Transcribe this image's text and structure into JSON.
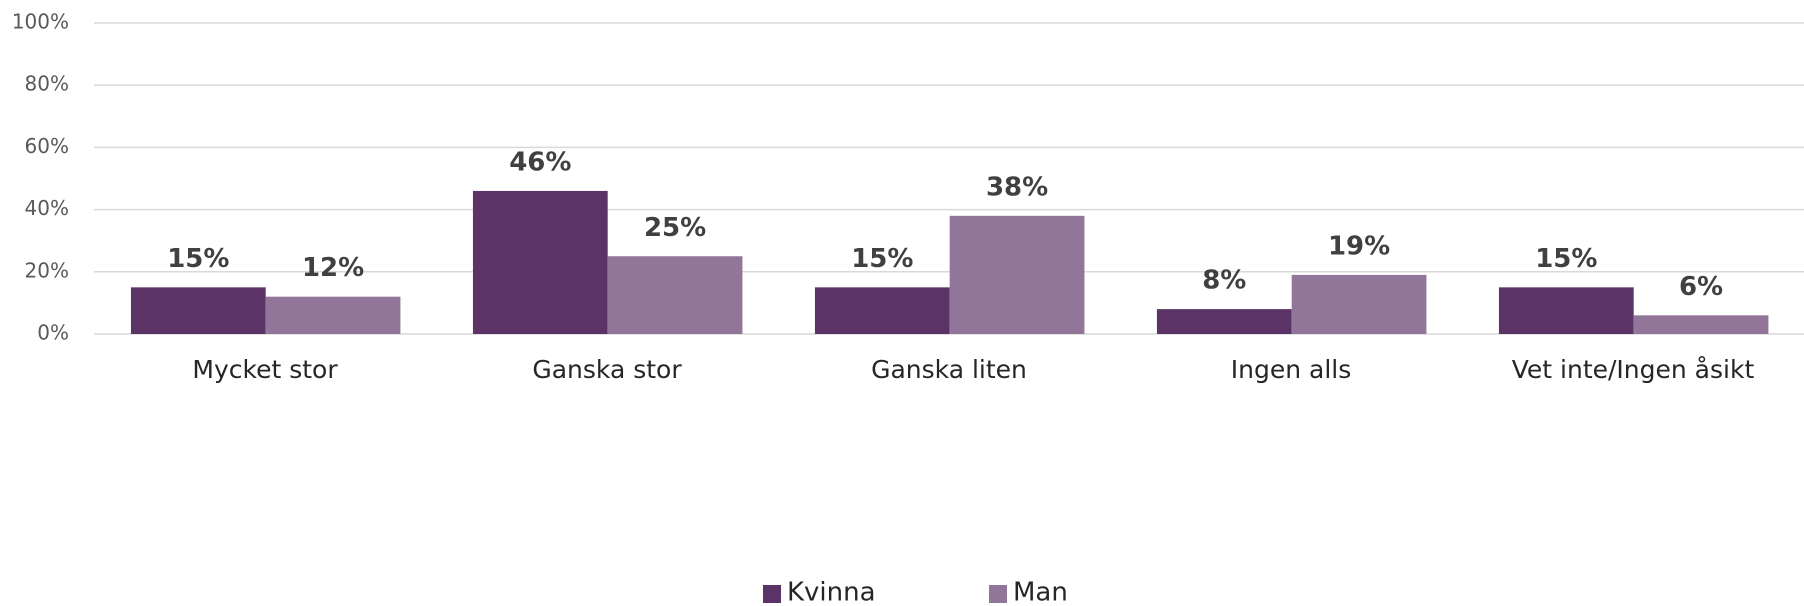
{
  "chart_data": {
    "type": "bar",
    "categories": [
      "Mycket stor",
      "Ganska stor",
      "Ganska liten",
      "Ingen alls",
      "Vet inte/Ingen åsikt"
    ],
    "series": [
      {
        "name": "Kvinna",
        "color": "#5c3366",
        "values": [
          15,
          46,
          15,
          8,
          15
        ],
        "value_labels": [
          "15%",
          "46%",
          "15%",
          "8%",
          "15%"
        ]
      },
      {
        "name": "Man",
        "color": "#927699",
        "values": [
          12,
          25,
          38,
          19,
          6
        ],
        "value_labels": [
          "12%",
          "25%",
          "38%",
          "19%",
          "6%"
        ]
      }
    ],
    "ylim": [
      0,
      100
    ],
    "yticks": [
      {
        "value": 0,
        "label": "0%"
      },
      {
        "value": 20,
        "label": "20%"
      },
      {
        "value": 40,
        "label": "40%"
      },
      {
        "value": 60,
        "label": "60%"
      },
      {
        "value": 80,
        "label": "80%"
      },
      {
        "value": 100,
        "label": "100%"
      }
    ],
    "grid": true,
    "legend": "bottom"
  }
}
